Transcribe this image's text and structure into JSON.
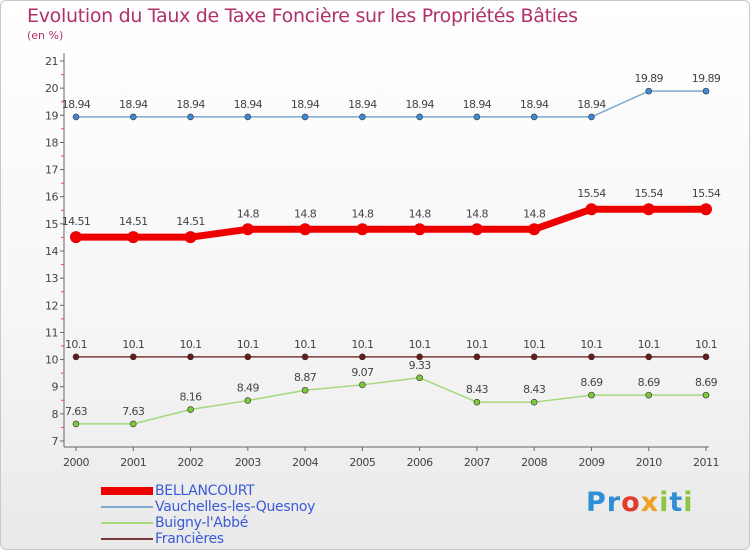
{
  "header": {
    "title": "Evolution du Taux de Taxe Foncière sur les Propriétés Bâties",
    "unit": "(en %)"
  },
  "logo": {
    "text": "Proxiti",
    "letters": [
      "P",
      "r",
      "o",
      "x",
      "i",
      "t",
      "i"
    ],
    "colors": [
      "#2f8fd6",
      "#2f8fd6",
      "#e23c2e",
      "#f0a020",
      "#8cc63f",
      "#2f8fd6",
      "#8cc63f"
    ]
  },
  "chart_data": {
    "type": "line",
    "title": "Evolution du Taux de Taxe Foncière sur les Propriétés Bâties",
    "ylabel": "(en %)",
    "xlabel": "",
    "x": [
      "2000",
      "2001",
      "2002",
      "2003",
      "2004",
      "2005",
      "2006",
      "2007",
      "2008",
      "2009",
      "2010",
      "2011"
    ],
    "ylim": [
      7,
      21
    ],
    "yticks": [
      7,
      8,
      9,
      10,
      11,
      12,
      13,
      14,
      15,
      16,
      17,
      18,
      19,
      20,
      21
    ],
    "grid": false,
    "legend_position": "bottom-left",
    "series": [
      {
        "name": "BELLANCOURT",
        "color": "#ee0000",
        "values": [
          14.51,
          14.51,
          14.51,
          14.8,
          14.8,
          14.8,
          14.8,
          14.8,
          14.8,
          15.54,
          15.54,
          15.54
        ],
        "labels": [
          "14.51",
          "14.51",
          "14.51",
          "14.8",
          "14.8",
          "14.8",
          "14.8",
          "14.8",
          "14.8",
          "15.54",
          "15.54",
          "15.54"
        ]
      },
      {
        "name": "Vauchelles-les-Quesnoy",
        "color": "#7fa8d0",
        "marker_color": "#3f88d8",
        "values": [
          18.94,
          18.94,
          18.94,
          18.94,
          18.94,
          18.94,
          18.94,
          18.94,
          18.94,
          18.94,
          19.89,
          19.89
        ],
        "labels": [
          "18.94",
          "18.94",
          "18.94",
          "18.94",
          "18.94",
          "18.94",
          "18.94",
          "18.94",
          "18.94",
          "18.94",
          "19.89",
          "19.89"
        ]
      },
      {
        "name": "Buigny-l'Abbé",
        "color": "#a6d87a",
        "marker_color": "#7ac83c",
        "values": [
          7.63,
          7.63,
          8.16,
          8.49,
          8.87,
          9.07,
          9.33,
          8.43,
          8.43,
          8.69,
          8.69,
          8.69
        ],
        "labels": [
          "7.63",
          "7.63",
          "8.16",
          "8.49",
          "8.87",
          "9.07",
          "9.33",
          "8.43",
          "8.43",
          "8.69",
          "8.69",
          "8.69"
        ]
      },
      {
        "name": "Francières",
        "color": "#7a3a3a",
        "marker_color": "#6a1a1a",
        "values": [
          10.1,
          10.1,
          10.1,
          10.1,
          10.1,
          10.1,
          10.1,
          10.1,
          10.1,
          10.1,
          10.1,
          10.1
        ],
        "labels": [
          "10.1",
          "10.1",
          "10.1",
          "10.1",
          "10.1",
          "10.1",
          "10.1",
          "10.1",
          "10.1",
          "10.1",
          "10.1",
          "10.1"
        ]
      }
    ]
  }
}
